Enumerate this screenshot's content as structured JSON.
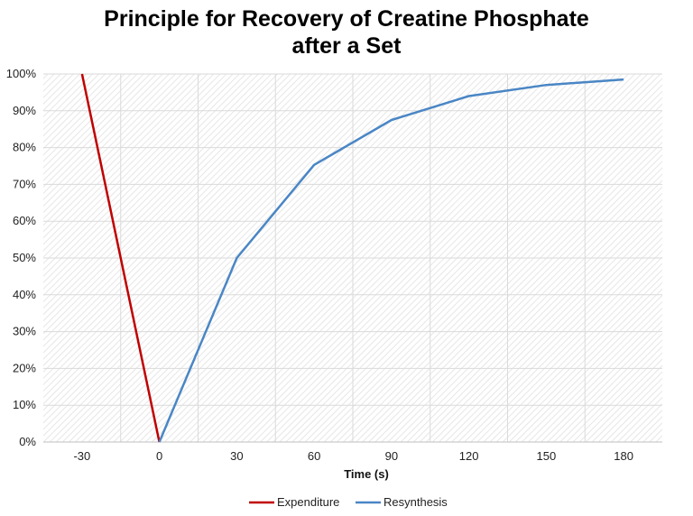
{
  "chart_data": {
    "type": "line",
    "title_line1": "Principle for Recovery of Creatine Phosphate",
    "title_line2": "after a Set",
    "xlabel": "Time (s)",
    "ylabel": "",
    "categories": [
      "-30",
      "0",
      "30",
      "60",
      "90",
      "120",
      "150",
      "180"
    ],
    "ylim": [
      0,
      100
    ],
    "y_ticks": [
      "0%",
      "10%",
      "20%",
      "30%",
      "40%",
      "50%",
      "60%",
      "70%",
      "80%",
      "90%",
      "100%"
    ],
    "legend_position": "bottom",
    "series": [
      {
        "name": "Expenditure",
        "color": "#c00000",
        "x": [
          -30,
          0
        ],
        "values": [
          100,
          0
        ]
      },
      {
        "name": "Resynthesis",
        "color": "#4a86c5",
        "x": [
          0,
          30,
          60,
          90,
          120,
          150,
          180
        ],
        "values": [
          0,
          50,
          75.3,
          87.5,
          94,
          97,
          98.5
        ]
      }
    ],
    "grid": true
  }
}
